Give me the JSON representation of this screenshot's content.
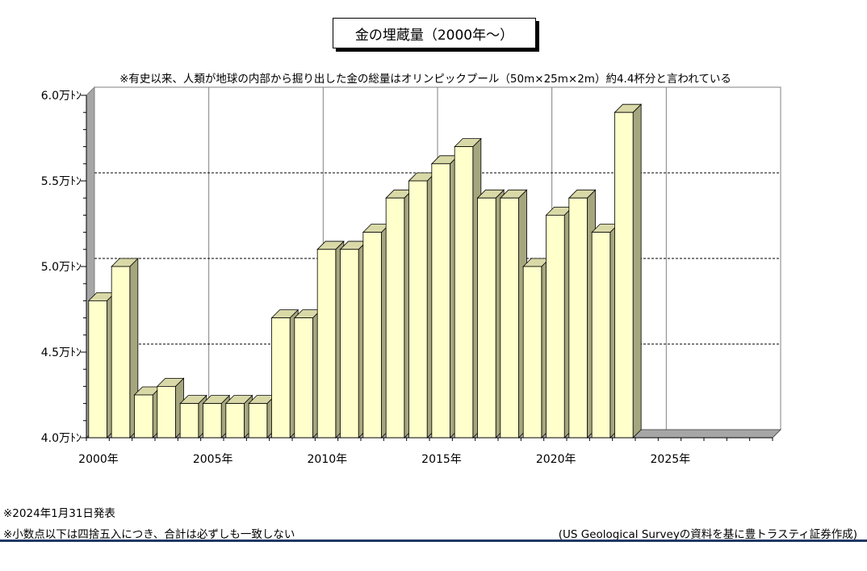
{
  "title": "金の埋蔵量（2000年～）",
  "subtitle": "※有史以来、人類が地球の内部から掘り出した金の総量はオリンピックプール（50m×25m×2m）約4.4杯分と言われている",
  "notes": {
    "date": "※2024年1月31日発表",
    "rounding": "※小数点以下は四捨五入につき、合計は必ずしも一致しない",
    "source": "(US Geological Surveyの資料を基に豊トラスティ証券作成)"
  },
  "colors": {
    "bar_front": "#ffffcc",
    "bar_side": "#a6a67e",
    "bar_top": "#d9d9a8",
    "wall": "#a6a6a6",
    "grid": "#000000",
    "rule": "#1f3864"
  },
  "chart_data": {
    "type": "bar",
    "x": [
      2000,
      2001,
      2002,
      2003,
      2004,
      2005,
      2006,
      2007,
      2008,
      2009,
      2010,
      2011,
      2012,
      2013,
      2014,
      2015,
      2016,
      2017,
      2018,
      2019,
      2020,
      2021,
      2022,
      2023
    ],
    "values": [
      4.8,
      5.0,
      4.25,
      4.3,
      4.2,
      4.2,
      4.2,
      4.2,
      4.7,
      4.7,
      5.1,
      5.1,
      5.2,
      5.4,
      5.5,
      5.6,
      5.7,
      5.4,
      5.4,
      5.0,
      5.3,
      5.4,
      5.2,
      5.9
    ],
    "xlim": [
      2000,
      2030
    ],
    "ylim": [
      4.0,
      6.0
    ],
    "y_ticks": [
      {
        "value": 4.0,
        "label": "4.0万ﾄﾝ"
      },
      {
        "value": 4.5,
        "label": "4.5万ﾄﾝ"
      },
      {
        "value": 5.0,
        "label": "5.0万ﾄﾝ"
      },
      {
        "value": 5.5,
        "label": "5.5万ﾄﾝ"
      },
      {
        "value": 6.0,
        "label": "6.0万ﾄﾝ"
      }
    ],
    "x_ticks": [
      {
        "value": 2000,
        "label": "2000年"
      },
      {
        "value": 2005,
        "label": "2005年"
      },
      {
        "value": 2010,
        "label": "2010年"
      },
      {
        "value": 2015,
        "label": "2015年"
      },
      {
        "value": 2020,
        "label": "2020年"
      },
      {
        "value": 2025,
        "label": "2025年"
      }
    ],
    "grid": true,
    "style": "3d"
  }
}
